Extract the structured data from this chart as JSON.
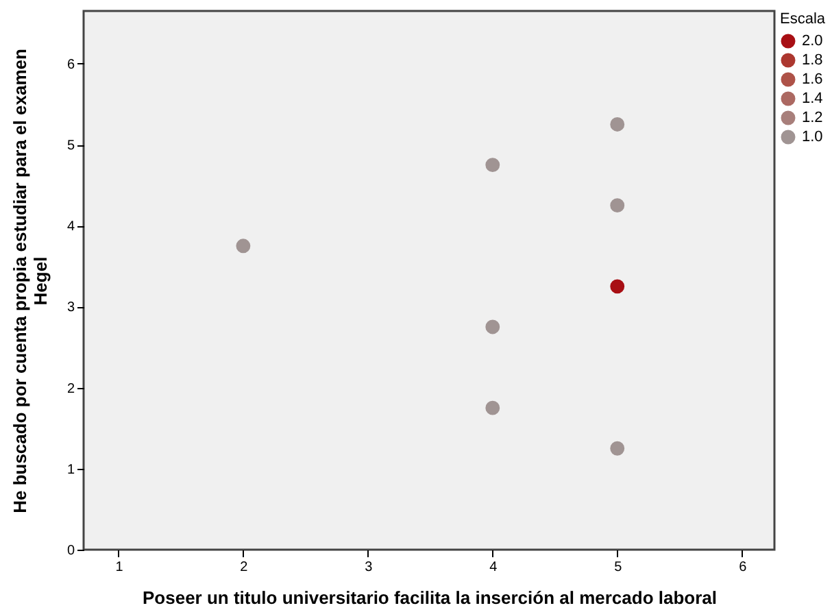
{
  "chart_data": {
    "type": "scatter",
    "xlabel": "Poseer un titulo universitario facilita la inserción al mercado laboral",
    "ylabel": "He buscado por cuenta propia estudiar para el examen\nHegel",
    "legend_title": "Escala",
    "x": [
      2,
      4,
      4,
      4,
      5,
      5,
      5,
      5
    ],
    "values": [
      3.75,
      4.75,
      2.75,
      1.75,
      5.25,
      4.25,
      3.25,
      1.25
    ],
    "cvalues": [
      1,
      1,
      1,
      1,
      1,
      1,
      2,
      1
    ],
    "colors": [
      "#a09493",
      "#a09493",
      "#a09493",
      "#a09493",
      "#a09493",
      "#a09493",
      "#a80f14",
      "#a09493"
    ],
    "clim": [
      1,
      2
    ],
    "cticks": [
      {
        "value": 2,
        "label": "2.0"
      },
      {
        "value": 1.8,
        "label": "1.8"
      },
      {
        "value": 1.6,
        "label": "1.6"
      },
      {
        "value": 1.4,
        "label": "1.4"
      },
      {
        "value": 1.2,
        "label": "1.2"
      },
      {
        "value": 1,
        "label": "1.0"
      }
    ],
    "xlim": [
      0.72,
      6.26
    ],
    "ylim": [
      0,
      6.65
    ],
    "xticks": [
      1,
      2,
      3,
      4,
      5,
      6
    ],
    "yticks": [
      0,
      1,
      2,
      3,
      4,
      5,
      6
    ],
    "marker": "circle",
    "grid": false
  }
}
